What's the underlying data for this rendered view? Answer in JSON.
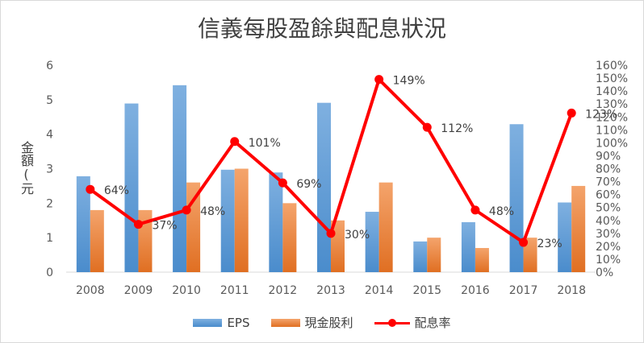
{
  "chart_data": {
    "type": "bar",
    "title": "信義每股盈餘與配息狀況",
    "ylabel": "金額(元",
    "categories": [
      "2008",
      "2009",
      "2010",
      "2011",
      "2012",
      "2013",
      "2014",
      "2015",
      "2016",
      "2017",
      "2018"
    ],
    "series": [
      {
        "name": "EPS",
        "type": "bar",
        "axis": "left",
        "color": "#5b9bd5",
        "values": [
          2.78,
          4.89,
          5.42,
          2.97,
          2.89,
          4.91,
          1.75,
          0.89,
          1.45,
          4.29,
          2.02
        ]
      },
      {
        "name": "現金股利",
        "type": "bar",
        "axis": "left",
        "color": "#ed7d31",
        "values": [
          1.8,
          1.8,
          2.6,
          3.0,
          2.0,
          1.5,
          2.6,
          1.0,
          0.7,
          1.0,
          2.5
        ]
      },
      {
        "name": "配息率",
        "type": "line",
        "axis": "right",
        "color": "#ff0000",
        "values": [
          64,
          37,
          48,
          101,
          69,
          30,
          149,
          112,
          48,
          23,
          123
        ],
        "labels": [
          "64%",
          "37%",
          "48%",
          "101%",
          "69%",
          "30%",
          "149%",
          "112%",
          "48%",
          "23%",
          "123%"
        ]
      }
    ],
    "ylim_left": [
      0,
      6
    ],
    "yticks_left": [
      "0",
      "1",
      "2",
      "3",
      "4",
      "5",
      "6"
    ],
    "ylim_right": [
      0,
      160
    ],
    "yticks_right": [
      "0%",
      "10%",
      "20%",
      "30%",
      "40%",
      "50%",
      "60%",
      "70%",
      "80%",
      "90%",
      "100%",
      "110%",
      "120%",
      "130%",
      "140%",
      "150%",
      "160%"
    ],
    "grid": false,
    "legend_position": "bottom"
  }
}
